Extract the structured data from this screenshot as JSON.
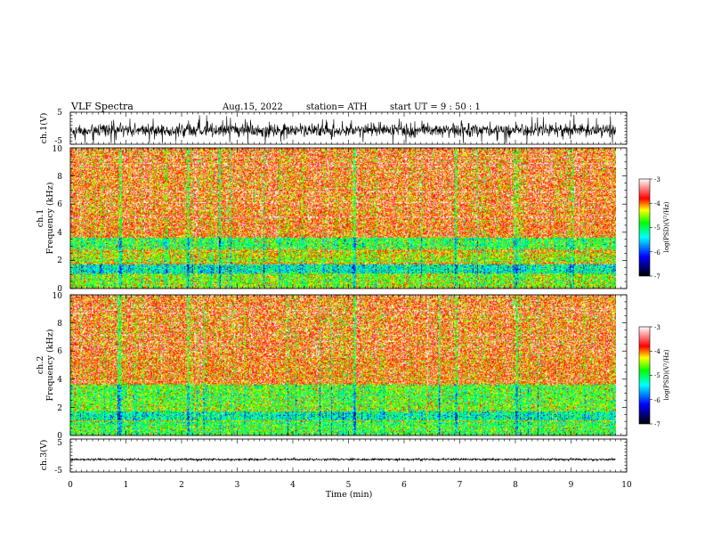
{
  "header": {
    "title": "VLF  Spectra",
    "date": "Aug.15, 2022",
    "station": "station= ATH",
    "start": "start  UT  =   9  : 50 : 1"
  },
  "chart_data": [
    {
      "type": "line",
      "id": "ch1-waveform",
      "ylabel": "ch.1(V)",
      "x_range": [
        0,
        10
      ],
      "ylim": [
        -5,
        5
      ],
      "y_ticks": [
        "5",
        "-5"
      ],
      "data_extent_min": [
        0,
        9.8
      ],
      "signal": {
        "mean": -0.6,
        "amplitude": 1.8,
        "spikes": 4.8
      },
      "color": "#000000"
    },
    {
      "type": "heatmap",
      "id": "ch1-spectrogram",
      "ylabel": "ch.1\nFrequency  (kHz)",
      "x_range": [
        0,
        10
      ],
      "ylim": [
        0,
        10
      ],
      "y_ticks": [
        "0",
        "2",
        "4",
        "6",
        "8",
        "10"
      ],
      "data_extent_min": [
        0,
        9.8
      ],
      "colorbar": {
        "label": "log(PSD)(V²/Hz)",
        "range": [
          -7,
          -3
        ],
        "ticks": [
          "-3",
          "-4",
          "-5",
          "-6",
          "-7"
        ]
      },
      "bands": [
        {
          "f_from": 0,
          "f_to": 1.1,
          "mean_log_psd": -4.6
        },
        {
          "f_from": 1.1,
          "f_to": 1.7,
          "mean_log_psd": -5.3
        },
        {
          "f_from": 1.7,
          "f_to": 2.2,
          "mean_log_psd": -4.5
        },
        {
          "f_from": 2.2,
          "f_to": 2.8,
          "mean_log_psd": -4.3
        },
        {
          "f_from": 2.8,
          "f_to": 3.6,
          "mean_log_psd": -4.9
        },
        {
          "f_from": 3.6,
          "f_to": 10,
          "mean_log_psd": -3.9
        }
      ]
    },
    {
      "type": "heatmap",
      "id": "ch2-spectrogram",
      "ylabel": "ch.2\nFrequency  (kHz)",
      "x_range": [
        0,
        10
      ],
      "ylim": [
        0,
        10
      ],
      "y_ticks": [
        "0",
        "2",
        "4",
        "6",
        "8",
        "10"
      ],
      "data_extent_min": [
        0,
        9.8
      ],
      "colorbar": {
        "label": "log(PSD)(V²/Hz)",
        "range": [
          -7,
          -3
        ],
        "ticks": [
          "-3",
          "-4",
          "-5",
          "-6",
          "-7"
        ]
      },
      "bands": [
        {
          "f_from": 0,
          "f_to": 1.1,
          "mean_log_psd": -4.8
        },
        {
          "f_from": 1.1,
          "f_to": 1.7,
          "mean_log_psd": -5.2
        },
        {
          "f_from": 1.7,
          "f_to": 2.3,
          "mean_log_psd": -4.6
        },
        {
          "f_from": 2.3,
          "f_to": 3.6,
          "mean_log_psd": -4.7
        },
        {
          "f_from": 3.6,
          "f_to": 10,
          "mean_log_psd": -3.9
        }
      ]
    },
    {
      "type": "line",
      "id": "ch3-waveform",
      "ylabel": "ch.3(V)",
      "x_range": [
        0,
        10
      ],
      "ylim": [
        -5,
        5
      ],
      "y_ticks": [
        "5",
        "-5"
      ],
      "data_extent_min": [
        0,
        9.8
      ],
      "signal": {
        "mean": -1.2,
        "amplitude": 0.25,
        "spikes": 0.5
      },
      "color": "#000000"
    }
  ],
  "x_axis": {
    "label": "Time  (min)",
    "ticks": [
      "0",
      "1",
      "2",
      "3",
      "4",
      "5",
      "6",
      "7",
      "8",
      "9",
      "10"
    ]
  },
  "colors": {
    "colormap": [
      "#000000",
      "#0000ff",
      "#00ffff",
      "#00ff00",
      "#ffff00",
      "#ff0000",
      "#ffffff"
    ]
  }
}
